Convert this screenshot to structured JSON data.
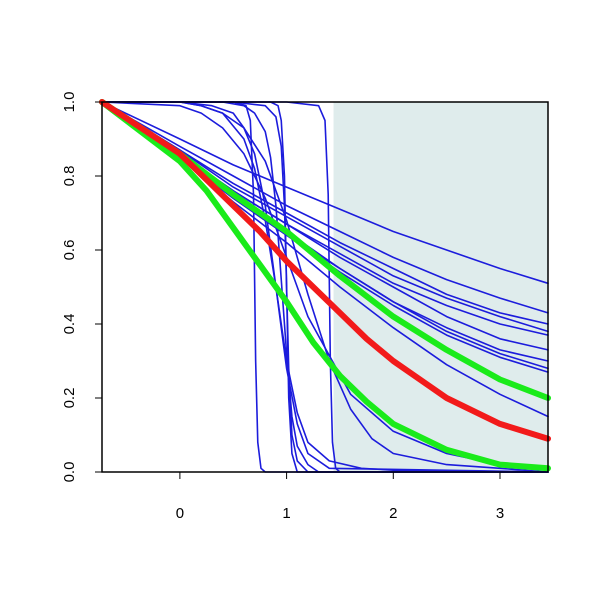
{
  "chart_data": {
    "type": "line",
    "title": "",
    "xlabel": "",
    "ylabel": "",
    "xlim": [
      -0.73,
      3.45
    ],
    "ylim": [
      0,
      1
    ],
    "x_ticks": [
      0,
      1,
      2,
      3
    ],
    "y_ticks": [
      0.0,
      0.2,
      0.4,
      0.6,
      0.8,
      1.0
    ],
    "x_tick_labels": [
      "0",
      "1",
      "2",
      "3"
    ],
    "y_tick_labels": [
      "0.0",
      "0.2",
      "0.4",
      "0.6",
      "0.8",
      "1.0"
    ],
    "grid": false,
    "legend": "none",
    "shaded_region": {
      "x_from": 1.44,
      "x_to": 3.45,
      "y_from": 0,
      "y_to": 1,
      "color": "#dfecec"
    },
    "colors": {
      "curves": "#1c1cdc",
      "main": "#f21a1a",
      "band": "#1aeb1a"
    },
    "series": [
      {
        "role": "sample",
        "x": [
          -0.73,
          0.0,
          0.5,
          1.0,
          1.5,
          2.0,
          2.5,
          3.0,
          3.45
        ],
        "y": [
          1.0,
          0.9,
          0.83,
          0.77,
          0.71,
          0.65,
          0.6,
          0.55,
          0.51
        ]
      },
      {
        "role": "sample",
        "x": [
          -0.73,
          0.0,
          0.5,
          1.0,
          1.5,
          2.0,
          2.5,
          3.0,
          3.45
        ],
        "y": [
          1.0,
          0.88,
          0.8,
          0.72,
          0.65,
          0.58,
          0.52,
          0.47,
          0.43
        ]
      },
      {
        "role": "sample",
        "x": [
          -0.73,
          0.0,
          0.5,
          1.0,
          1.5,
          2.0,
          2.5,
          3.0,
          3.45
        ],
        "y": [
          1.0,
          0.87,
          0.78,
          0.7,
          0.62,
          0.55,
          0.48,
          0.43,
          0.4
        ]
      },
      {
        "role": "sample",
        "x": [
          -0.73,
          0.0,
          0.5,
          1.0,
          1.5,
          2.0,
          2.5,
          3.0,
          3.45
        ],
        "y": [
          1.0,
          0.87,
          0.77,
          0.69,
          0.61,
          0.53,
          0.47,
          0.42,
          0.38
        ]
      },
      {
        "role": "sample",
        "x": [
          -0.73,
          0.0,
          0.5,
          1.0,
          1.5,
          2.0,
          2.5,
          3.0,
          3.45
        ],
        "y": [
          1.0,
          0.86,
          0.76,
          0.67,
          0.59,
          0.51,
          0.45,
          0.4,
          0.37
        ]
      },
      {
        "role": "sample",
        "x": [
          -0.73,
          0.0,
          0.5,
          1.0,
          1.5,
          2.0,
          2.5,
          3.0,
          3.45
        ],
        "y": [
          1.0,
          0.86,
          0.76,
          0.67,
          0.58,
          0.5,
          0.42,
          0.36,
          0.33
        ]
      },
      {
        "role": "sample",
        "x": [
          -0.73,
          0.0,
          0.5,
          1.0,
          1.5,
          2.0,
          2.5,
          3.0,
          3.45
        ],
        "y": [
          1.0,
          0.85,
          0.74,
          0.64,
          0.55,
          0.46,
          0.39,
          0.33,
          0.3
        ]
      },
      {
        "role": "sample",
        "x": [
          -0.73,
          0.0,
          0.5,
          1.0,
          1.5,
          2.0,
          2.5,
          3.0,
          3.45
        ],
        "y": [
          1.0,
          0.86,
          0.75,
          0.65,
          0.55,
          0.46,
          0.38,
          0.32,
          0.28
        ]
      },
      {
        "role": "sample",
        "x": [
          -0.73,
          0.0,
          0.5,
          1.0,
          1.5,
          2.0,
          2.5,
          3.0,
          3.45
        ],
        "y": [
          1.0,
          0.85,
          0.74,
          0.64,
          0.54,
          0.45,
          0.37,
          0.31,
          0.27
        ]
      },
      {
        "role": "sample",
        "x": [
          -0.73,
          0.0,
          0.5,
          1.0,
          1.5,
          2.0,
          2.5,
          3.0,
          3.45
        ],
        "y": [
          1.0,
          0.85,
          0.73,
          0.62,
          0.5,
          0.39,
          0.29,
          0.21,
          0.15
        ]
      },
      {
        "role": "sample",
        "x": [
          -0.73,
          0.0,
          0.2,
          0.4,
          0.6,
          0.8,
          1.0,
          1.2,
          1.6,
          2.0,
          2.5,
          3.0,
          3.45
        ],
        "y": [
          1.0,
          0.99,
          0.97,
          0.93,
          0.86,
          0.74,
          0.58,
          0.42,
          0.21,
          0.11,
          0.05,
          0.02,
          0.01
        ]
      },
      {
        "role": "sample",
        "x": [
          -0.73,
          0.0,
          0.2,
          0.4,
          0.6,
          0.7,
          0.8,
          0.9,
          1.0,
          1.1,
          1.2,
          1.4,
          1.7,
          2.0,
          3.45
        ],
        "y": [
          1.0,
          1.0,
          0.99,
          0.97,
          0.9,
          0.82,
          0.68,
          0.5,
          0.3,
          0.16,
          0.08,
          0.03,
          0.01,
          0.005,
          0.0
        ]
      },
      {
        "role": "sample",
        "x": [
          -0.73,
          0.0,
          0.3,
          0.5,
          0.6,
          0.7,
          0.8,
          0.9,
          1.0,
          1.1,
          1.2,
          1.4,
          3.45
        ],
        "y": [
          1.0,
          1.0,
          0.99,
          0.97,
          0.93,
          0.86,
          0.72,
          0.5,
          0.28,
          0.13,
          0.05,
          0.01,
          0.0
        ]
      },
      {
        "role": "sample",
        "x": [
          -0.73,
          0.0,
          0.2,
          0.4,
          0.6,
          0.8,
          1.0,
          1.2,
          1.4,
          1.6,
          1.8,
          2.0,
          2.5,
          3.0,
          3.45
        ],
        "y": [
          1.0,
          1.0,
          0.99,
          0.97,
          0.93,
          0.84,
          0.68,
          0.48,
          0.3,
          0.17,
          0.09,
          0.05,
          0.02,
          0.01,
          0.0
        ]
      },
      {
        "role": "sample",
        "x": [
          -0.73,
          0.0,
          0.4,
          0.6,
          0.7,
          0.8,
          0.85,
          0.9,
          0.95,
          1.0,
          1.05,
          1.1,
          1.2,
          1.3,
          3.45
        ],
        "y": [
          1.0,
          1.0,
          1.0,
          0.99,
          0.97,
          0.92,
          0.85,
          0.72,
          0.52,
          0.32,
          0.15,
          0.07,
          0.02,
          0.0,
          0.0
        ]
      },
      {
        "role": "sample",
        "x": [
          -0.73,
          0.0,
          0.5,
          0.8,
          0.9,
          0.95,
          0.98,
          1.0,
          1.02,
          1.05,
          1.1,
          1.2,
          3.45
        ],
        "y": [
          1.0,
          1.0,
          1.0,
          0.99,
          0.96,
          0.88,
          0.72,
          0.5,
          0.28,
          0.1,
          0.03,
          0.0,
          0.0
        ]
      },
      {
        "role": "sample",
        "x": [
          -0.73,
          0.0,
          0.6,
          0.85,
          0.92,
          0.95,
          0.98,
          1.0,
          1.02,
          1.05,
          1.1,
          3.45
        ],
        "y": [
          1.0,
          1.0,
          1.0,
          1.0,
          0.99,
          0.95,
          0.8,
          0.5,
          0.2,
          0.05,
          0.0,
          0.0
        ]
      },
      {
        "role": "sample",
        "x": [
          -0.73,
          0.0,
          0.5,
          0.62,
          0.66,
          0.69,
          0.71,
          0.73,
          0.76,
          0.8,
          3.45
        ],
        "y": [
          1.0,
          1.0,
          1.0,
          0.99,
          0.95,
          0.75,
          0.3,
          0.08,
          0.01,
          0.0,
          0.0
        ]
      },
      {
        "role": "sample",
        "x": [
          -0.73,
          0.0,
          1.0,
          1.3,
          1.36,
          1.39,
          1.41,
          1.43,
          1.46,
          1.5,
          3.45
        ],
        "y": [
          1.0,
          1.0,
          1.0,
          0.99,
          0.95,
          0.75,
          0.3,
          0.08,
          0.01,
          0.0,
          0.0
        ]
      },
      {
        "role": "band",
        "x": [
          -0.73,
          0.0,
          0.5,
          1.0,
          1.5,
          2.0,
          2.5,
          3.0,
          3.45
        ],
        "y": [
          1.0,
          0.86,
          0.75,
          0.65,
          0.53,
          0.42,
          0.33,
          0.25,
          0.2
        ]
      },
      {
        "role": "main",
        "x": [
          -0.73,
          0.0,
          0.25,
          0.5,
          0.75,
          1.0,
          1.25,
          1.5,
          1.75,
          2.0,
          2.5,
          3.0,
          3.45
        ],
        "y": [
          1.0,
          0.86,
          0.79,
          0.72,
          0.65,
          0.57,
          0.5,
          0.43,
          0.36,
          0.3,
          0.2,
          0.13,
          0.09
        ]
      },
      {
        "role": "band",
        "x": [
          -0.73,
          0.0,
          0.25,
          0.5,
          0.75,
          1.0,
          1.25,
          1.5,
          1.75,
          2.0,
          2.5,
          3.0,
          3.45
        ],
        "y": [
          1.0,
          0.84,
          0.76,
          0.66,
          0.56,
          0.46,
          0.35,
          0.26,
          0.19,
          0.13,
          0.06,
          0.02,
          0.01
        ]
      }
    ]
  }
}
